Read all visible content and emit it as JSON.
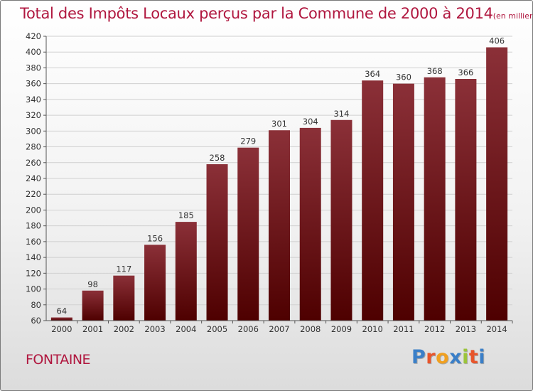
{
  "chart_data": {
    "type": "bar",
    "title": "Total des Impôts Locaux perçus par la Commune de 2000 à 2014",
    "unit_label": "(en milliers d'€)",
    "categories": [
      "2000",
      "2001",
      "2002",
      "2003",
      "2004",
      "2005",
      "2006",
      "2007",
      "2008",
      "2009",
      "2010",
      "2011",
      "2012",
      "2013",
      "2014"
    ],
    "values": [
      64,
      98,
      117,
      156,
      185,
      258,
      279,
      301,
      304,
      314,
      364,
      360,
      368,
      366,
      406
    ],
    "ylim": [
      60,
      420
    ],
    "yticks": [
      60,
      80,
      100,
      120,
      140,
      160,
      180,
      200,
      220,
      240,
      260,
      280,
      300,
      320,
      340,
      360,
      380,
      400,
      420
    ],
    "xlabel": "",
    "ylabel": "",
    "grid": true,
    "bar_color_top": "#8b3038",
    "bar_color_bottom": "#4e0000"
  },
  "commune": "FONTAINE",
  "brand": {
    "letters": [
      "P",
      "r",
      "o",
      "x",
      "i",
      "t",
      "i"
    ],
    "colors": [
      "#3a7fc8",
      "#e8552b",
      "#f0a020",
      "#3a7fc8",
      "#9bc43a",
      "#e8552b",
      "#3a7fc8"
    ]
  },
  "colors": {
    "title": "#b0173f",
    "label": "#333333"
  }
}
